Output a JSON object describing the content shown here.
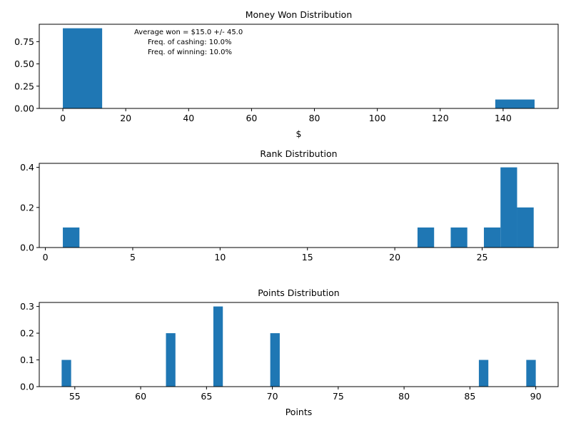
{
  "chart_data": [
    {
      "type": "bar",
      "title": "Money Won Distribution",
      "xlabel": "$",
      "ylabel": "",
      "xlim": [
        -7.5,
        157.5
      ],
      "ylim": [
        0,
        0.945
      ],
      "xticks": [
        0,
        20,
        40,
        60,
        80,
        100,
        120,
        140
      ],
      "yticks": [
        0.0,
        0.25,
        0.5,
        0.75
      ],
      "ytick_labels": [
        "0.00",
        "0.25",
        "0.50",
        "0.75"
      ],
      "bars": [
        {
          "x0": 0,
          "x1": 12.5,
          "value": 0.9
        },
        {
          "x0": 137.5,
          "x1": 150,
          "value": 0.1
        }
      ],
      "annotations": [
        "Average won = $15.0 +/- 45.0",
        "Freq. of cashing: 10.0%",
        "Freq. of winning: 10.0%"
      ]
    },
    {
      "type": "bar",
      "title": "Rank Distribution",
      "xlabel": "",
      "ylabel": "",
      "xlim": [
        -0.35,
        29.35
      ],
      "ylim": [
        0,
        0.42
      ],
      "xticks": [
        0,
        5,
        10,
        15,
        20,
        25
      ],
      "yticks": [
        0.0,
        0.2,
        0.4
      ],
      "ytick_labels": [
        "0.0",
        "0.2",
        "0.4"
      ],
      "bars": [
        {
          "x0": 1.0,
          "x1": 1.95,
          "value": 0.1
        },
        {
          "x0": 21.3,
          "x1": 22.25,
          "value": 0.1
        },
        {
          "x0": 23.2,
          "x1": 24.15,
          "value": 0.1
        },
        {
          "x0": 25.1,
          "x1": 26.05,
          "value": 0.1
        },
        {
          "x0": 26.05,
          "x1": 27.0,
          "value": 0.4
        },
        {
          "x0": 27.0,
          "x1": 27.95,
          "value": 0.2
        }
      ]
    },
    {
      "type": "bar",
      "title": "Points Distribution",
      "xlabel": "Points",
      "ylabel": "",
      "xlim": [
        52.3,
        91.7
      ],
      "ylim": [
        0,
        0.315
      ],
      "xticks": [
        55,
        60,
        65,
        70,
        75,
        80,
        85,
        90
      ],
      "yticks": [
        0.0,
        0.1,
        0.2,
        0.3
      ],
      "ytick_labels": [
        "0.0",
        "0.1",
        "0.2",
        "0.3"
      ],
      "bars": [
        {
          "x0": 54.0,
          "x1": 54.72,
          "value": 0.1
        },
        {
          "x0": 61.92,
          "x1": 62.64,
          "value": 0.2
        },
        {
          "x0": 65.52,
          "x1": 66.24,
          "value": 0.3
        },
        {
          "x0": 69.84,
          "x1": 70.56,
          "value": 0.2
        },
        {
          "x0": 85.68,
          "x1": 86.4,
          "value": 0.1
        },
        {
          "x0": 89.28,
          "x1": 90.0,
          "value": 0.1
        }
      ]
    }
  ],
  "colors": {
    "bar": "#1f77b4",
    "axis": "#000000",
    "background": "#ffffff"
  }
}
